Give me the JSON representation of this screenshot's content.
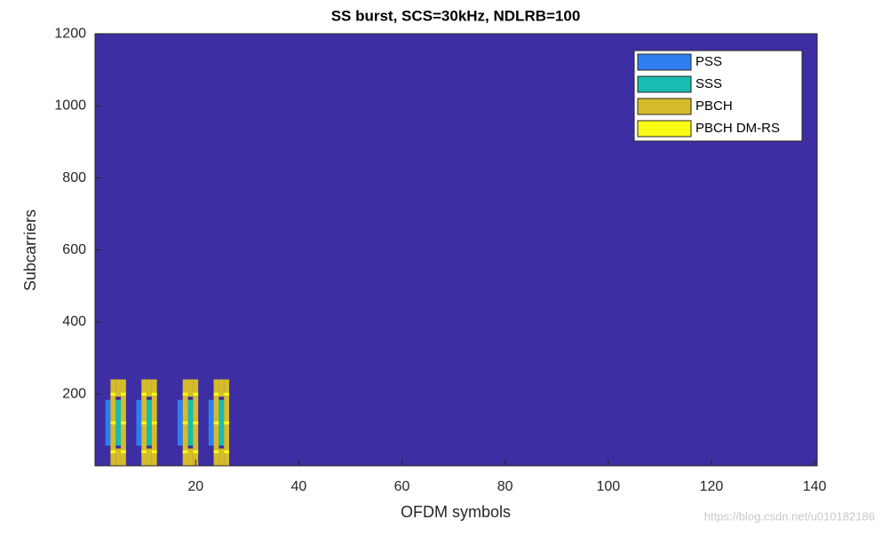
{
  "chart_data": {
    "type": "resource-grid",
    "title": "SS burst, SCS=30kHz, NDLRB=100",
    "x_label": "OFDM symbols",
    "y_label": "Subcarriers",
    "xlim": [
      0.5,
      140.5
    ],
    "ylim": [
      0.5,
      1200.5
    ],
    "xticks": [
      20,
      40,
      60,
      80,
      100,
      120,
      140
    ],
    "yticks": [
      200,
      400,
      600,
      800,
      1000,
      1200
    ],
    "background": "#3d2ea3",
    "legend": "upper right",
    "series": [
      {
        "name": "PSS",
        "color": "#2f7ef0",
        "x": [
          3,
          9,
          17,
          23
        ],
        "y": [
          [
            57,
            183
          ],
          [
            57,
            183
          ],
          [
            57,
            183
          ],
          [
            57,
            183
          ]
        ]
      },
      {
        "name": "SSS",
        "color": "#18bcb0",
        "x": [
          5,
          11,
          19,
          25
        ],
        "y": [
          [
            57,
            183
          ],
          [
            57,
            183
          ],
          [
            57,
            183
          ],
          [
            57,
            183
          ]
        ]
      },
      {
        "name": "PBCH",
        "color": "#d5bc2a",
        "x": [
          4,
          5,
          5,
          6,
          10,
          11,
          11,
          12,
          18,
          19,
          19,
          20,
          24,
          25,
          25,
          26
        ],
        "y": [
          [
            1,
            240
          ],
          [
            1,
            48
          ],
          [
            193,
            240
          ],
          [
            1,
            240
          ],
          [
            1,
            240
          ],
          [
            1,
            48
          ],
          [
            193,
            240
          ],
          [
            1,
            240
          ],
          [
            1,
            240
          ],
          [
            1,
            48
          ],
          [
            193,
            240
          ],
          [
            1,
            240
          ],
          [
            1,
            240
          ],
          [
            1,
            48
          ],
          [
            193,
            240
          ],
          [
            1,
            240
          ]
        ]
      },
      {
        "name": "PBCH DM-RS",
        "color": "#f9fb14",
        "x": [
          4,
          4,
          4,
          6,
          6,
          6,
          10,
          10,
          10,
          12,
          12,
          12,
          18,
          18,
          18,
          20,
          20,
          20,
          24,
          24,
          24,
          26,
          26,
          26
        ],
        "y": [
          [
            36,
            43
          ],
          [
            116,
            123
          ],
          [
            196,
            203
          ],
          [
            36,
            43
          ],
          [
            116,
            123
          ],
          [
            196,
            203
          ],
          [
            36,
            43
          ],
          [
            116,
            123
          ],
          [
            196,
            203
          ],
          [
            36,
            43
          ],
          [
            116,
            123
          ],
          [
            196,
            203
          ],
          [
            36,
            43
          ],
          [
            116,
            123
          ],
          [
            196,
            203
          ],
          [
            36,
            43
          ],
          [
            116,
            123
          ],
          [
            196,
            203
          ],
          [
            36,
            43
          ],
          [
            116,
            123
          ],
          [
            196,
            203
          ],
          [
            36,
            43
          ],
          [
            116,
            123
          ],
          [
            196,
            203
          ]
        ]
      }
    ]
  },
  "watermark": "https://blog.csdn.net/u010182186"
}
